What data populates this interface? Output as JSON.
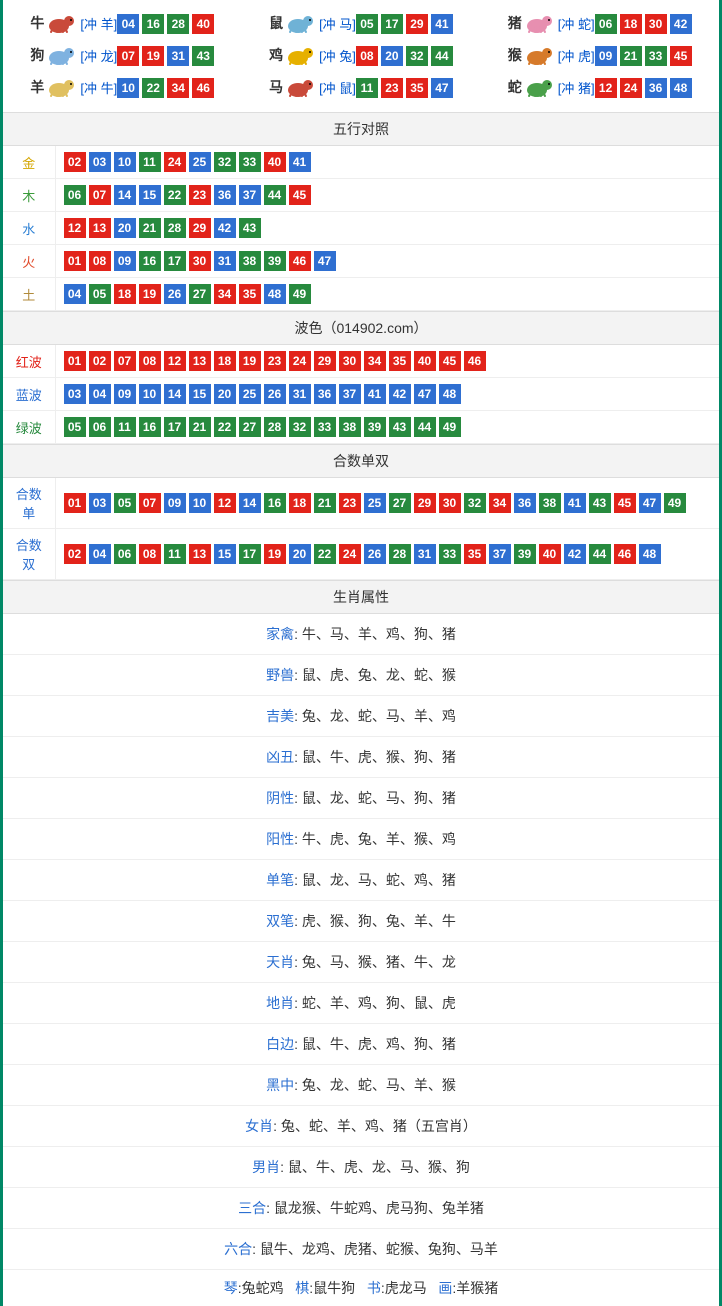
{
  "chipColorClass": {
    "red": "c-red",
    "blue": "c-blue",
    "green": "c-green"
  },
  "zodiac": [
    {
      "name": "牛",
      "icon_color": "#c94a3a",
      "conflict": "[冲 羊]",
      "nums": [
        {
          "v": "04",
          "c": "blue"
        },
        {
          "v": "16",
          "c": "green"
        },
        {
          "v": "28",
          "c": "green"
        },
        {
          "v": "40",
          "c": "red"
        }
      ]
    },
    {
      "name": "鼠",
      "icon_color": "#6fb2d6",
      "conflict": "[冲 马]",
      "nums": [
        {
          "v": "05",
          "c": "green"
        },
        {
          "v": "17",
          "c": "green"
        },
        {
          "v": "29",
          "c": "red"
        },
        {
          "v": "41",
          "c": "blue"
        }
      ]
    },
    {
      "name": "猪",
      "icon_color": "#e78fb0",
      "conflict": "[冲 蛇]",
      "nums": [
        {
          "v": "06",
          "c": "green"
        },
        {
          "v": "18",
          "c": "red"
        },
        {
          "v": "30",
          "c": "red"
        },
        {
          "v": "42",
          "c": "blue"
        }
      ]
    },
    {
      "name": "狗",
      "icon_color": "#7fb2e0",
      "conflict": "[冲 龙]",
      "nums": [
        {
          "v": "07",
          "c": "red"
        },
        {
          "v": "19",
          "c": "red"
        },
        {
          "v": "31",
          "c": "blue"
        },
        {
          "v": "43",
          "c": "green"
        }
      ]
    },
    {
      "name": "鸡",
      "icon_color": "#e6b000",
      "conflict": "[冲 兔]",
      "nums": [
        {
          "v": "08",
          "c": "red"
        },
        {
          "v": "20",
          "c": "blue"
        },
        {
          "v": "32",
          "c": "green"
        },
        {
          "v": "44",
          "c": "green"
        }
      ]
    },
    {
      "name": "猴",
      "icon_color": "#d67a2a",
      "conflict": "[冲 虎]",
      "nums": [
        {
          "v": "09",
          "c": "blue"
        },
        {
          "v": "21",
          "c": "green"
        },
        {
          "v": "33",
          "c": "green"
        },
        {
          "v": "45",
          "c": "red"
        }
      ]
    },
    {
      "name": "羊",
      "icon_color": "#e0c060",
      "conflict": "[冲 牛]",
      "nums": [
        {
          "v": "10",
          "c": "blue"
        },
        {
          "v": "22",
          "c": "green"
        },
        {
          "v": "34",
          "c": "red"
        },
        {
          "v": "46",
          "c": "red"
        }
      ]
    },
    {
      "name": "马",
      "icon_color": "#c94a3a",
      "conflict": "[冲 鼠]",
      "nums": [
        {
          "v": "11",
          "c": "green"
        },
        {
          "v": "23",
          "c": "red"
        },
        {
          "v": "35",
          "c": "red"
        },
        {
          "v": "47",
          "c": "blue"
        }
      ]
    },
    {
      "name": "蛇",
      "icon_color": "#4aa04a",
      "conflict": "[冲 猪]",
      "nums": [
        {
          "v": "12",
          "c": "red"
        },
        {
          "v": "24",
          "c": "red"
        },
        {
          "v": "36",
          "c": "blue"
        },
        {
          "v": "48",
          "c": "blue"
        }
      ]
    }
  ],
  "sections": {
    "wuxing_header": "五行对照",
    "wuxing": [
      {
        "label": "金",
        "label_class": "lbl-gold",
        "nums": [
          {
            "v": "02",
            "c": "red"
          },
          {
            "v": "03",
            "c": "blue"
          },
          {
            "v": "10",
            "c": "blue"
          },
          {
            "v": "11",
            "c": "green"
          },
          {
            "v": "24",
            "c": "red"
          },
          {
            "v": "25",
            "c": "blue"
          },
          {
            "v": "32",
            "c": "green"
          },
          {
            "v": "33",
            "c": "green"
          },
          {
            "v": "40",
            "c": "red"
          },
          {
            "v": "41",
            "c": "blue"
          }
        ]
      },
      {
        "label": "木",
        "label_class": "lbl-wood",
        "nums": [
          {
            "v": "06",
            "c": "green"
          },
          {
            "v": "07",
            "c": "red"
          },
          {
            "v": "14",
            "c": "blue"
          },
          {
            "v": "15",
            "c": "blue"
          },
          {
            "v": "22",
            "c": "green"
          },
          {
            "v": "23",
            "c": "red"
          },
          {
            "v": "36",
            "c": "blue"
          },
          {
            "v": "37",
            "c": "blue"
          },
          {
            "v": "44",
            "c": "green"
          },
          {
            "v": "45",
            "c": "red"
          }
        ]
      },
      {
        "label": "水",
        "label_class": "lbl-water",
        "nums": [
          {
            "v": "12",
            "c": "red"
          },
          {
            "v": "13",
            "c": "red"
          },
          {
            "v": "20",
            "c": "blue"
          },
          {
            "v": "21",
            "c": "green"
          },
          {
            "v": "28",
            "c": "green"
          },
          {
            "v": "29",
            "c": "red"
          },
          {
            "v": "42",
            "c": "blue"
          },
          {
            "v": "43",
            "c": "green"
          }
        ]
      },
      {
        "label": "火",
        "label_class": "lbl-fire",
        "nums": [
          {
            "v": "01",
            "c": "red"
          },
          {
            "v": "08",
            "c": "red"
          },
          {
            "v": "09",
            "c": "blue"
          },
          {
            "v": "16",
            "c": "green"
          },
          {
            "v": "17",
            "c": "green"
          },
          {
            "v": "30",
            "c": "red"
          },
          {
            "v": "31",
            "c": "blue"
          },
          {
            "v": "38",
            "c": "green"
          },
          {
            "v": "39",
            "c": "green"
          },
          {
            "v": "46",
            "c": "red"
          },
          {
            "v": "47",
            "c": "blue"
          }
        ]
      },
      {
        "label": "土",
        "label_class": "lbl-earth",
        "nums": [
          {
            "v": "04",
            "c": "blue"
          },
          {
            "v": "05",
            "c": "green"
          },
          {
            "v": "18",
            "c": "red"
          },
          {
            "v": "19",
            "c": "red"
          },
          {
            "v": "26",
            "c": "blue"
          },
          {
            "v": "27",
            "c": "green"
          },
          {
            "v": "34",
            "c": "red"
          },
          {
            "v": "35",
            "c": "red"
          },
          {
            "v": "48",
            "c": "blue"
          },
          {
            "v": "49",
            "c": "green"
          }
        ]
      }
    ],
    "bose_header": "波色（014902.com）",
    "bose": [
      {
        "label": "红波",
        "label_class": "lbl-red",
        "nums": [
          {
            "v": "01",
            "c": "red"
          },
          {
            "v": "02",
            "c": "red"
          },
          {
            "v": "07",
            "c": "red"
          },
          {
            "v": "08",
            "c": "red"
          },
          {
            "v": "12",
            "c": "red"
          },
          {
            "v": "13",
            "c": "red"
          },
          {
            "v": "18",
            "c": "red"
          },
          {
            "v": "19",
            "c": "red"
          },
          {
            "v": "23",
            "c": "red"
          },
          {
            "v": "24",
            "c": "red"
          },
          {
            "v": "29",
            "c": "red"
          },
          {
            "v": "30",
            "c": "red"
          },
          {
            "v": "34",
            "c": "red"
          },
          {
            "v": "35",
            "c": "red"
          },
          {
            "v": "40",
            "c": "red"
          },
          {
            "v": "45",
            "c": "red"
          },
          {
            "v": "46",
            "c": "red"
          }
        ]
      },
      {
        "label": "蓝波",
        "label_class": "lbl-blue",
        "nums": [
          {
            "v": "03",
            "c": "blue"
          },
          {
            "v": "04",
            "c": "blue"
          },
          {
            "v": "09",
            "c": "blue"
          },
          {
            "v": "10",
            "c": "blue"
          },
          {
            "v": "14",
            "c": "blue"
          },
          {
            "v": "15",
            "c": "blue"
          },
          {
            "v": "20",
            "c": "blue"
          },
          {
            "v": "25",
            "c": "blue"
          },
          {
            "v": "26",
            "c": "blue"
          },
          {
            "v": "31",
            "c": "blue"
          },
          {
            "v": "36",
            "c": "blue"
          },
          {
            "v": "37",
            "c": "blue"
          },
          {
            "v": "41",
            "c": "blue"
          },
          {
            "v": "42",
            "c": "blue"
          },
          {
            "v": "47",
            "c": "blue"
          },
          {
            "v": "48",
            "c": "blue"
          }
        ]
      },
      {
        "label": "绿波",
        "label_class": "lbl-green",
        "nums": [
          {
            "v": "05",
            "c": "green"
          },
          {
            "v": "06",
            "c": "green"
          },
          {
            "v": "11",
            "c": "green"
          },
          {
            "v": "16",
            "c": "green"
          },
          {
            "v": "17",
            "c": "green"
          },
          {
            "v": "21",
            "c": "green"
          },
          {
            "v": "22",
            "c": "green"
          },
          {
            "v": "27",
            "c": "green"
          },
          {
            "v": "28",
            "c": "green"
          },
          {
            "v": "32",
            "c": "green"
          },
          {
            "v": "33",
            "c": "green"
          },
          {
            "v": "38",
            "c": "green"
          },
          {
            "v": "39",
            "c": "green"
          },
          {
            "v": "43",
            "c": "green"
          },
          {
            "v": "44",
            "c": "green"
          },
          {
            "v": "49",
            "c": "green"
          }
        ]
      }
    ],
    "heshu_header": "合数单双",
    "heshu": [
      {
        "label": "合数单",
        "label_class": "lbl-blue",
        "nums": [
          {
            "v": "01",
            "c": "red"
          },
          {
            "v": "03",
            "c": "blue"
          },
          {
            "v": "05",
            "c": "green"
          },
          {
            "v": "07",
            "c": "red"
          },
          {
            "v": "09",
            "c": "blue"
          },
          {
            "v": "10",
            "c": "blue"
          },
          {
            "v": "12",
            "c": "red"
          },
          {
            "v": "14",
            "c": "blue"
          },
          {
            "v": "16",
            "c": "green"
          },
          {
            "v": "18",
            "c": "red"
          },
          {
            "v": "21",
            "c": "green"
          },
          {
            "v": "23",
            "c": "red"
          },
          {
            "v": "25",
            "c": "blue"
          },
          {
            "v": "27",
            "c": "green"
          },
          {
            "v": "29",
            "c": "red"
          },
          {
            "v": "30",
            "c": "red"
          },
          {
            "v": "32",
            "c": "green"
          },
          {
            "v": "34",
            "c": "red"
          },
          {
            "v": "36",
            "c": "blue"
          },
          {
            "v": "38",
            "c": "green"
          },
          {
            "v": "41",
            "c": "blue"
          },
          {
            "v": "43",
            "c": "green"
          },
          {
            "v": "45",
            "c": "red"
          },
          {
            "v": "47",
            "c": "blue"
          },
          {
            "v": "49",
            "c": "green"
          }
        ]
      },
      {
        "label": "合数双",
        "label_class": "lbl-blue",
        "nums": [
          {
            "v": "02",
            "c": "red"
          },
          {
            "v": "04",
            "c": "blue"
          },
          {
            "v": "06",
            "c": "green"
          },
          {
            "v": "08",
            "c": "red"
          },
          {
            "v": "11",
            "c": "green"
          },
          {
            "v": "13",
            "c": "red"
          },
          {
            "v": "15",
            "c": "blue"
          },
          {
            "v": "17",
            "c": "green"
          },
          {
            "v": "19",
            "c": "red"
          },
          {
            "v": "20",
            "c": "blue"
          },
          {
            "v": "22",
            "c": "green"
          },
          {
            "v": "24",
            "c": "red"
          },
          {
            "v": "26",
            "c": "blue"
          },
          {
            "v": "28",
            "c": "green"
          },
          {
            "v": "31",
            "c": "blue"
          },
          {
            "v": "33",
            "c": "green"
          },
          {
            "v": "35",
            "c": "red"
          },
          {
            "v": "37",
            "c": "blue"
          },
          {
            "v": "39",
            "c": "green"
          },
          {
            "v": "40",
            "c": "red"
          },
          {
            "v": "42",
            "c": "blue"
          },
          {
            "v": "44",
            "c": "green"
          },
          {
            "v": "46",
            "c": "red"
          },
          {
            "v": "48",
            "c": "blue"
          }
        ]
      }
    ],
    "zodiac_attr_header": "生肖属性",
    "zodiac_attrs": [
      {
        "label": "家禽",
        "val": "牛、马、羊、鸡、狗、猪"
      },
      {
        "label": "野兽",
        "val": "鼠、虎、兔、龙、蛇、猴"
      },
      {
        "label": "吉美",
        "val": "兔、龙、蛇、马、羊、鸡"
      },
      {
        "label": "凶丑",
        "val": "鼠、牛、虎、猴、狗、猪"
      },
      {
        "label": "阴性",
        "val": "鼠、龙、蛇、马、狗、猪"
      },
      {
        "label": "阳性",
        "val": "牛、虎、兔、羊、猴、鸡"
      },
      {
        "label": "单笔",
        "val": "鼠、龙、马、蛇、鸡、猪"
      },
      {
        "label": "双笔",
        "val": "虎、猴、狗、兔、羊、牛"
      },
      {
        "label": "天肖",
        "val": "兔、马、猴、猪、牛、龙"
      },
      {
        "label": "地肖",
        "val": "蛇、羊、鸡、狗、鼠、虎"
      },
      {
        "label": "白边",
        "val": "鼠、牛、虎、鸡、狗、猪"
      },
      {
        "label": "黑中",
        "val": "兔、龙、蛇、马、羊、猴"
      },
      {
        "label": "女肖",
        "val": "兔、蛇、羊、鸡、猪（五宫肖）"
      },
      {
        "label": "男肖",
        "val": "鼠、牛、虎、龙、马、猴、狗"
      },
      {
        "label": "三合",
        "val": "鼠龙猴、牛蛇鸡、虎马狗、兔羊猪"
      },
      {
        "label": "六合",
        "val": "鼠牛、龙鸡、虎猪、蛇猴、兔狗、马羊"
      }
    ],
    "seasons": [
      {
        "key": "琴",
        "val": "兔蛇鸡"
      },
      {
        "key": "棋",
        "val": "鼠牛狗"
      },
      {
        "key": "书",
        "val": "虎龙马"
      },
      {
        "key": "画",
        "val": "羊猴猪"
      }
    ]
  }
}
